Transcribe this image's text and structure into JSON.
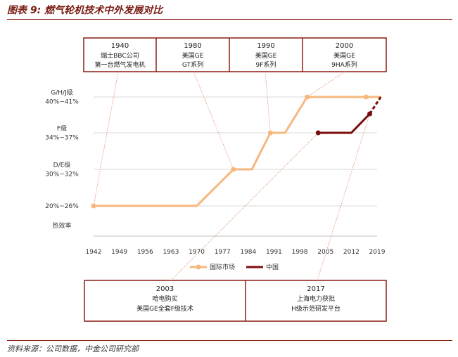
{
  "figure_title": "图表 9: 燃气轮机技术中外发展对比",
  "source_note": "资料来源：公司数据，中金公司研究部",
  "colors": {
    "international": "#f7b77e",
    "china": "#7b0d0d",
    "frame": "#8b1d12",
    "leader": "#e08a6a",
    "grid": "#d9d9d9"
  },
  "chart_data": {
    "type": "line",
    "x_ticks": [
      "1942",
      "1949",
      "1956",
      "1963",
      "1970",
      "1977",
      "1984",
      "1991",
      "1998",
      "2005",
      "2012",
      "2019"
    ],
    "xlim": [
      1942,
      2019
    ],
    "y_levels": [
      {
        "key": "ylabel",
        "lines": [
          "热效率"
        ]
      },
      {
        "key": "l1",
        "lines": [
          "20%~26%"
        ]
      },
      {
        "key": "l2",
        "lines": [
          "D/E级",
          "30%~32%"
        ]
      },
      {
        "key": "l3",
        "lines": [
          "F级",
          "34%~37%"
        ]
      },
      {
        "key": "l4",
        "lines": [
          "G/H/J级",
          "40%~41%"
        ]
      }
    ],
    "series": [
      {
        "name": "国际市场",
        "color": "#f7b77e",
        "points": [
          {
            "x": 1942,
            "level": "l1"
          },
          {
            "x": 1970,
            "level": "l1"
          },
          {
            "x": 1980,
            "level": "l2"
          },
          {
            "x": 1985,
            "level": "l2"
          },
          {
            "x": 1990,
            "level": "l3"
          },
          {
            "x": 1994,
            "level": "l3"
          },
          {
            "x": 2000,
            "level": "l4"
          },
          {
            "x": 2016,
            "level": "l4"
          },
          {
            "x": 2020,
            "level": "l4"
          }
        ],
        "markers": [
          {
            "x": 1942,
            "level": "l1"
          },
          {
            "x": 1980,
            "level": "l2"
          },
          {
            "x": 1990,
            "level": "l3"
          },
          {
            "x": 2000,
            "level": "l4"
          },
          {
            "x": 2016,
            "level": "l4"
          }
        ]
      },
      {
        "name": "中国",
        "color": "#7b0d0d",
        "points": [
          {
            "x": 2003,
            "level": "l3"
          },
          {
            "x": 2012,
            "level": "l3"
          },
          {
            "x": 2017,
            "level": "l3.6"
          }
        ],
        "dashed_points": [
          {
            "x": 2017,
            "level": "l3.6"
          },
          {
            "x": 2020,
            "level": "l4"
          }
        ],
        "markers": [
          {
            "x": 2003,
            "level": "l3"
          },
          {
            "x": 2017,
            "level": "l3.6"
          }
        ]
      }
    ],
    "annotations_top": [
      {
        "year": "1940",
        "lines": [
          "瑞士BBC公司",
          "第一台燃气发电机"
        ]
      },
      {
        "year": "1980",
        "lines": [
          "美国GE",
          "GT系列"
        ]
      },
      {
        "year": "1990",
        "lines": [
          "美国GE",
          "9F系列"
        ]
      },
      {
        "year": "2000",
        "lines": [
          "美国GE",
          "9HA系列"
        ]
      }
    ],
    "annotations_bottom": [
      {
        "year": "2003",
        "lines": [
          "哈电购买",
          "美国GE全套F级技术"
        ]
      },
      {
        "year": "2017",
        "lines": [
          "上海电力获批",
          "H级示范研发平台"
        ]
      }
    ]
  }
}
